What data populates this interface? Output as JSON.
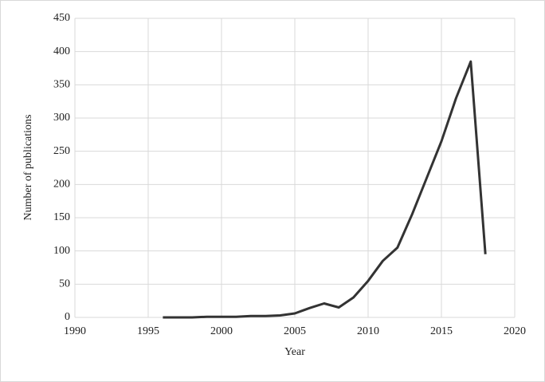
{
  "chart_data": {
    "type": "line",
    "x_label": "Year",
    "y_label": "Number of publications",
    "x": [
      1996,
      1997,
      1998,
      1999,
      2000,
      2001,
      2002,
      2003,
      2004,
      2005,
      2006,
      2007,
      2008,
      2009,
      2010,
      2011,
      2012,
      2013,
      2014,
      2015,
      2016,
      2017,
      2018
    ],
    "values": [
      0,
      0,
      0,
      1,
      1,
      1,
      2,
      2,
      3,
      6,
      14,
      21,
      15,
      30,
      55,
      85,
      105,
      155,
      210,
      265,
      330,
      385,
      95
    ],
    "color": "#333333",
    "xlim": [
      1990,
      2020
    ],
    "xticks": [
      1990,
      1995,
      2000,
      2005,
      2010,
      2015,
      2020
    ],
    "ylim": [
      0,
      450
    ],
    "yticks": [
      0,
      50,
      100,
      150,
      200,
      250,
      300,
      350,
      400,
      450
    ],
    "grid": true
  }
}
